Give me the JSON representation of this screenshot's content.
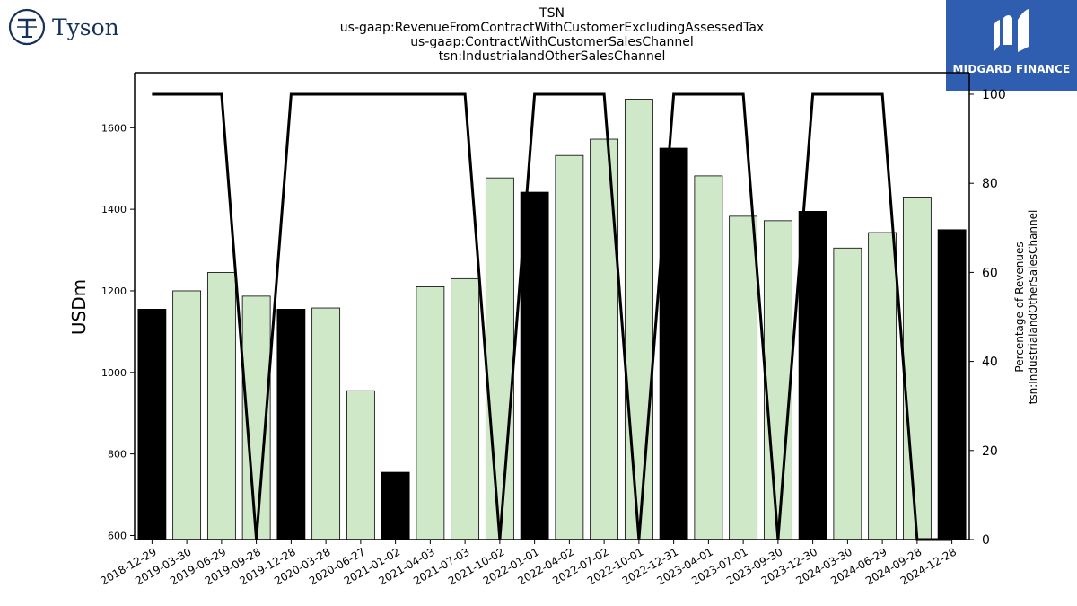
{
  "header": {
    "title_lines": [
      "TSN",
      "us-gaap:RevenueFromContractWithCustomerExcludingAssessedTax",
      "us-gaap:ContractWithCustomerSalesChannel",
      "tsn:IndustrialandOtherSalesChannel"
    ]
  },
  "logos": {
    "left_text": "Tyson",
    "left_icon": "tyson-emblem-icon",
    "right_text": "MIDGARD FINANCE",
    "right_icon": "midgard-m-icon"
  },
  "colors": {
    "bar_light": "#cfe8c8",
    "bar_dark": "#000000",
    "line": "#000000",
    "brand_blue": "#2f5db0",
    "tyson_navy": "#16305c"
  },
  "chart_data": {
    "type": "bar",
    "categories": [
      "2018-12-29",
      "2019-03-30",
      "2019-06-29",
      "2019-09-28",
      "2019-12-28",
      "2020-03-28",
      "2020-06-27",
      "2021-01-02",
      "2021-04-03",
      "2021-07-03",
      "2021-10-02",
      "2022-01-01",
      "2022-04-02",
      "2022-07-02",
      "2022-10-01",
      "2022-12-31",
      "2023-04-01",
      "2023-07-01",
      "2023-09-30",
      "2023-12-30",
      "2024-03-30",
      "2024-06-29",
      "2024-09-28",
      "2024-12-28"
    ],
    "values": [
      1155,
      1200,
      1245,
      1187,
      1155,
      1158,
      955,
      755,
      1210,
      1230,
      1477,
      1442,
      1532,
      1572,
      1670,
      1550,
      1482,
      1383,
      1372,
      1395,
      1305,
      1343,
      1430,
      1350
    ],
    "highlighted": [
      true,
      false,
      false,
      false,
      true,
      false,
      false,
      true,
      false,
      false,
      false,
      true,
      false,
      false,
      false,
      true,
      false,
      false,
      false,
      true,
      false,
      false,
      false,
      true
    ],
    "ylabel": "USDm",
    "ylim": [
      590,
      1735
    ],
    "yticks": [
      600,
      800,
      1000,
      1200,
      1400,
      1600
    ],
    "secondary": {
      "type": "line",
      "ylabel_lines": [
        "Percentage of Revenues",
        "tsn:IndustrialandOtherSalesChannel"
      ],
      "ylim": [
        0,
        100
      ],
      "yticks": [
        0,
        20,
        40,
        60,
        80,
        100
      ],
      "values": [
        100,
        100,
        100,
        0,
        100,
        100,
        100,
        100,
        100,
        100,
        0,
        100,
        100,
        100,
        0,
        100,
        100,
        100,
        0,
        100,
        100,
        100,
        0,
        0
      ]
    }
  }
}
